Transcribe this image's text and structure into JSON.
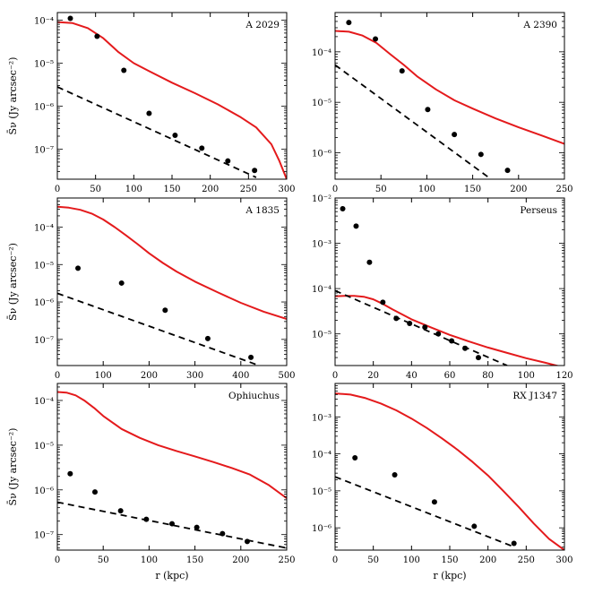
{
  "colors": {
    "model_line": "#e41a1c",
    "dashed_line": "#000000",
    "points": "#000000",
    "axes": "#000000"
  },
  "chart_data": [
    {
      "type": "scatter",
      "title": "A 2029",
      "xlabel": "",
      "ylabel": "S̄ν (Jy arcsec⁻²)",
      "yscale": "log",
      "xlim": [
        0,
        300
      ],
      "ylim": [
        2e-08,
        0.00015
      ],
      "xticks": [
        0,
        50,
        100,
        150,
        200,
        250,
        300
      ],
      "yticks": [
        {
          "value": 1e-07,
          "label": "10⁻⁷"
        },
        {
          "value": 1e-06,
          "label": "10⁻⁶"
        },
        {
          "value": 1e-05,
          "label": "10⁻⁵"
        },
        {
          "value": 0.0001,
          "label": "10⁻⁴"
        }
      ],
      "series": [
        {
          "name": "model",
          "style": "solid-red",
          "x": [
            0,
            20,
            40,
            60,
            80,
            100,
            120,
            150,
            180,
            210,
            240,
            260,
            280,
            290,
            300
          ],
          "y": [
            9e-05,
            8.5e-05,
            6.5e-05,
            3.8e-05,
            1.8e-05,
            1e-05,
            6.5e-06,
            3.5e-06,
            2e-06,
            1.1e-06,
            5.5e-07,
            3.2e-07,
            1.3e-07,
            5.5e-08,
            2e-08
          ]
        },
        {
          "name": "dashed",
          "style": "dashed-black",
          "x": [
            0,
            260
          ],
          "y": [
            2.8e-06,
            2.2e-08
          ]
        },
        {
          "name": "data",
          "style": "points",
          "x": [
            17,
            52,
            87,
            120,
            154,
            189,
            223,
            258
          ],
          "y": [
            0.00011,
            4.2e-05,
            6.8e-06,
            6.8e-07,
            2.1e-07,
            1.05e-07,
            5.3e-08,
            3.2e-08
          ]
        }
      ]
    },
    {
      "type": "scatter",
      "title": "A 2390",
      "xlabel": "",
      "ylabel": "",
      "yscale": "log",
      "xlim": [
        0,
        250
      ],
      "ylim": [
        3e-07,
        0.0006
      ],
      "xticks": [
        0,
        50,
        100,
        150,
        200,
        250
      ],
      "yticks": [
        {
          "value": 1e-06,
          "label": "10⁻⁶"
        },
        {
          "value": 1e-05,
          "label": "10⁻⁵"
        },
        {
          "value": 0.0001,
          "label": "10⁻⁴"
        }
      ],
      "series": [
        {
          "name": "model",
          "style": "solid-red",
          "x": [
            0,
            15,
            30,
            45,
            60,
            75,
            90,
            110,
            130,
            150,
            175,
            200,
            225,
            250
          ],
          "y": [
            0.00026,
            0.00025,
            0.00021,
            0.00015,
            9e-05,
            5.5e-05,
            3.2e-05,
            1.8e-05,
            1.1e-05,
            7.5e-06,
            4.8e-06,
            3.2e-06,
            2.2e-06,
            1.5e-06
          ]
        },
        {
          "name": "dashed",
          "style": "dashed-black",
          "x": [
            0,
            170
          ],
          "y": [
            5.5e-05,
            3e-07
          ]
        },
        {
          "name": "data",
          "style": "points",
          "x": [
            15,
            44,
            73,
            101,
            130,
            159,
            188
          ],
          "y": [
            0.00038,
            0.00018,
            4.2e-05,
            7.2e-06,
            2.3e-06,
            9.3e-07,
            4.5e-07
          ]
        }
      ]
    },
    {
      "type": "scatter",
      "title": "A 1835",
      "xlabel": "",
      "ylabel": "S̄ν (Jy arcsec⁻²)",
      "yscale": "log",
      "xlim": [
        0,
        500
      ],
      "ylim": [
        2e-08,
        0.0006
      ],
      "xticks": [
        0,
        100,
        200,
        300,
        400,
        500
      ],
      "yticks": [
        {
          "value": 1e-07,
          "label": "10⁻⁷"
        },
        {
          "value": 1e-06,
          "label": "10⁻⁶"
        },
        {
          "value": 1e-05,
          "label": "10⁻⁵"
        },
        {
          "value": 0.0001,
          "label": "10⁻⁴"
        }
      ],
      "series": [
        {
          "name": "model",
          "style": "solid-red",
          "x": [
            0,
            25,
            50,
            75,
            100,
            125,
            150,
            175,
            200,
            230,
            260,
            300,
            350,
            400,
            450,
            500
          ],
          "y": [
            0.00035,
            0.00033,
            0.00029,
            0.00023,
            0.00016,
            0.0001,
            6e-05,
            3.5e-05,
            2e-05,
            1.1e-05,
            6.5e-06,
            3.5e-06,
            1.8e-06,
            9.5e-07,
            5.5e-07,
            3.5e-07
          ]
        },
        {
          "name": "dashed",
          "style": "dashed-black",
          "x": [
            0,
            440
          ],
          "y": [
            1.7e-06,
            2e-08
          ]
        },
        {
          "name": "data",
          "style": "points",
          "x": [
            45,
            140,
            235,
            328,
            422
          ],
          "y": [
            8e-06,
            3.2e-06,
            6e-07,
            1.05e-07,
            3.3e-08
          ]
        }
      ]
    },
    {
      "type": "scatter",
      "title": "Perseus",
      "xlabel": "",
      "ylabel": "",
      "yscale": "log",
      "xlim": [
        0,
        120
      ],
      "ylim": [
        2e-06,
        0.01
      ],
      "xticks": [
        0,
        20,
        40,
        60,
        80,
        100,
        120
      ],
      "yticks": [
        {
          "value": 1e-05,
          "label": "10⁻⁵"
        },
        {
          "value": 0.0001,
          "label": "10⁻⁴"
        },
        {
          "value": 0.001,
          "label": "10⁻³"
        },
        {
          "value": 0.01,
          "label": "10⁻²"
        }
      ],
      "series": [
        {
          "name": "model",
          "style": "solid-red",
          "x": [
            0,
            5,
            10,
            15,
            20,
            25,
            30,
            40,
            50,
            60,
            70,
            80,
            90,
            100,
            110,
            120
          ],
          "y": [
            6.8e-05,
            6.9e-05,
            6.9e-05,
            6.6e-05,
            5.8e-05,
            4.6e-05,
            3.5e-05,
            2.1e-05,
            1.4e-05,
            9.5e-06,
            6.8e-06,
            5e-06,
            3.8e-06,
            2.9e-06,
            2.3e-06,
            1.8e-06
          ]
        },
        {
          "name": "dashed",
          "style": "dashed-black",
          "x": [
            0,
            90
          ],
          "y": [
            9e-05,
            2e-06
          ]
        },
        {
          "name": "data",
          "style": "points",
          "x": [
            4,
            11,
            18,
            25,
            32,
            39,
            47,
            54,
            61,
            68,
            75
          ],
          "y": [
            0.0058,
            0.0024,
            0.00038,
            5e-05,
            2.2e-05,
            1.7e-05,
            1.4e-05,
            1e-05,
            7e-06,
            4.8e-06,
            3e-06
          ]
        }
      ]
    },
    {
      "type": "scatter",
      "title": "Ophiuchus",
      "xlabel": "r (kpc)",
      "ylabel": "S̄ν (Jy arcsec⁻²)",
      "yscale": "log",
      "xlim": [
        0,
        250
      ],
      "ylim": [
        4.5e-08,
        0.00024
      ],
      "xticks": [
        0,
        50,
        100,
        150,
        200,
        250
      ],
      "yticks": [
        {
          "value": 1e-07,
          "label": "10⁻⁷"
        },
        {
          "value": 1e-06,
          "label": "10⁻⁶"
        },
        {
          "value": 1e-05,
          "label": "10⁻⁵"
        },
        {
          "value": 0.0001,
          "label": "10⁻⁴"
        }
      ],
      "series": [
        {
          "name": "model",
          "style": "solid-red",
          "x": [
            0,
            10,
            20,
            30,
            40,
            50,
            70,
            90,
            110,
            130,
            150,
            170,
            190,
            210,
            230,
            250
          ],
          "y": [
            0.000155,
            0.00015,
            0.00013,
            9.8e-05,
            6.8e-05,
            4.5e-05,
            2.3e-05,
            1.45e-05,
            1e-05,
            7.4e-06,
            5.6e-06,
            4.2e-06,
            3.1e-06,
            2.2e-06,
            1.3e-06,
            6.5e-07
          ]
        },
        {
          "name": "dashed",
          "style": "dashed-black",
          "x": [
            0,
            250
          ],
          "y": [
            5.3e-07,
            5e-08
          ]
        },
        {
          "name": "data",
          "style": "points",
          "x": [
            14,
            41,
            69,
            97,
            125,
            152,
            180,
            207
          ],
          "y": [
            2.3e-06,
            9e-07,
            3.4e-07,
            2.2e-07,
            1.75e-07,
            1.45e-07,
            1.05e-07,
            7e-08
          ]
        }
      ]
    },
    {
      "type": "scatter",
      "title": "RX J1347",
      "xlabel": "r (kpc)",
      "ylabel": "",
      "yscale": "log",
      "xlim": [
        0,
        300
      ],
      "ylim": [
        2.5e-07,
        0.008
      ],
      "xticks": [
        0,
        50,
        100,
        150,
        200,
        250,
        300
      ],
      "yticks": [
        {
          "value": 1e-06,
          "label": "10⁻⁶"
        },
        {
          "value": 1e-05,
          "label": "10⁻⁵"
        },
        {
          "value": 0.0001,
          "label": "10⁻⁴"
        },
        {
          "value": 0.001,
          "label": "10⁻³"
        }
      ],
      "series": [
        {
          "name": "model",
          "style": "solid-red",
          "x": [
            0,
            20,
            40,
            60,
            80,
            100,
            120,
            140,
            160,
            180,
            200,
            220,
            240,
            260,
            280,
            300
          ],
          "y": [
            0.0043,
            0.004,
            0.0032,
            0.0023,
            0.0015,
            0.0009,
            0.0005,
            0.00026,
            0.00013,
            6e-05,
            2.6e-05,
            1e-05,
            3.7e-06,
            1.3e-06,
            5e-07,
            2.5e-07
          ]
        },
        {
          "name": "dashed",
          "style": "dashed-black",
          "x": [
            0,
            235
          ],
          "y": [
            2.4e-05,
            3e-07
          ]
        },
        {
          "name": "data",
          "style": "points",
          "x": [
            26,
            78,
            130,
            182,
            234
          ],
          "y": [
            7.8e-05,
            2.7e-05,
            5e-06,
            1.1e-06,
            3.8e-07
          ]
        }
      ]
    }
  ]
}
